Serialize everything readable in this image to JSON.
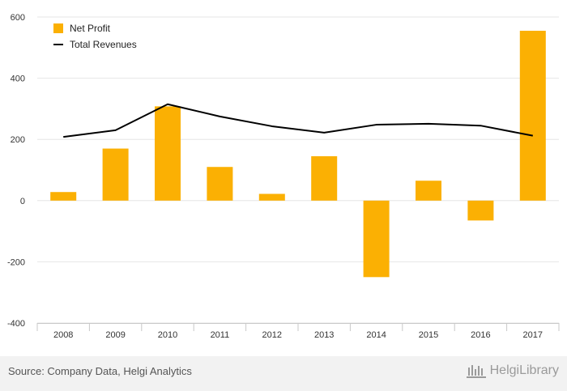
{
  "chart_data": {
    "type": "bar",
    "categories": [
      "2008",
      "2009",
      "2010",
      "2011",
      "2012",
      "2013",
      "2014",
      "2015",
      "2016",
      "2017"
    ],
    "series": [
      {
        "name": "Net Profit",
        "type": "bar",
        "color": "#fbb003",
        "values": [
          28,
          170,
          308,
          110,
          22,
          145,
          -250,
          65,
          -65,
          555
        ]
      },
      {
        "name": "Total Revenues",
        "type": "line",
        "color": "#000000",
        "values": [
          208,
          230,
          315,
          275,
          243,
          222,
          248,
          251,
          245,
          212
        ]
      }
    ],
    "ylim": [
      -400,
      600
    ],
    "yticks": [
      -400,
      -200,
      0,
      200,
      400,
      600
    ],
    "grid": true,
    "legend": "top-left"
  },
  "footer": {
    "source": "Source: Company Data, Helgi Analytics",
    "brand_text": "HelgiLibrary",
    "brand_icon": "library-columns-icon"
  }
}
